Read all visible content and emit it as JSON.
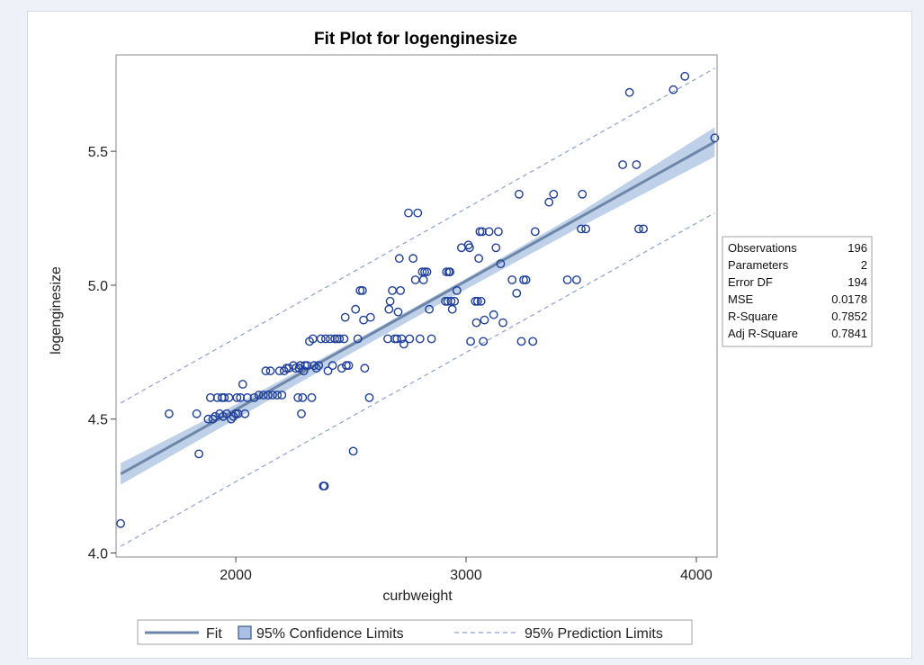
{
  "chart_data": {
    "type": "scatter",
    "title": "Fit Plot for logenginesize",
    "xlabel": "curbweight",
    "ylabel": "logenginesize",
    "xlim": [
      1480,
      4090
    ],
    "ylim": [
      3.985,
      5.86
    ],
    "xticks": [
      2000,
      3000,
      4000
    ],
    "yticks": [
      4.0,
      4.5,
      5.0,
      5.5
    ],
    "xtick_labels": [
      "2000",
      "3000",
      "4000"
    ],
    "ytick_labels": [
      "4.0",
      "4.5",
      "5.0",
      "5.5"
    ],
    "grid": false,
    "colors": {
      "points": "#1f3f9a",
      "fit": "#6e86a8",
      "confidence": "#a9c0e2",
      "prediction": "#8e9ed0"
    },
    "fit": {
      "x": [
        1500,
        4080
      ],
      "y": [
        4.295,
        5.535
      ]
    },
    "confidence_limits": {
      "x": [
        1500,
        2000,
        2500,
        3000,
        3500,
        4080
      ],
      "lower": [
        4.255,
        4.5,
        4.745,
        4.985,
        5.22,
        5.48
      ],
      "upper": [
        4.335,
        4.555,
        4.785,
        5.025,
        5.275,
        5.59
      ]
    },
    "prediction_limits": {
      "x": [
        1500,
        4080
      ],
      "lower": [
        4.025,
        5.27
      ],
      "upper": [
        4.56,
        5.81
      ]
    },
    "points": [
      [
        1500,
        4.11
      ],
      [
        1710,
        4.52
      ],
      [
        1830,
        4.52
      ],
      [
        1840,
        4.37
      ],
      [
        1880,
        4.5
      ],
      [
        1890,
        4.58
      ],
      [
        1900,
        4.5
      ],
      [
        1910,
        4.51
      ],
      [
        1920,
        4.58
      ],
      [
        1930,
        4.52
      ],
      [
        1940,
        4.58
      ],
      [
        1945,
        4.51
      ],
      [
        1950,
        4.58
      ],
      [
        1960,
        4.52
      ],
      [
        1970,
        4.58
      ],
      [
        1980,
        4.5
      ],
      [
        1990,
        4.51
      ],
      [
        2000,
        4.52
      ],
      [
        2005,
        4.58
      ],
      [
        2010,
        4.52
      ],
      [
        2020,
        4.58
      ],
      [
        2030,
        4.63
      ],
      [
        2040,
        4.52
      ],
      [
        2050,
        4.58
      ],
      [
        2080,
        4.58
      ],
      [
        2100,
        4.59
      ],
      [
        2120,
        4.59
      ],
      [
        2130,
        4.68
      ],
      [
        2140,
        4.59
      ],
      [
        2150,
        4.68
      ],
      [
        2160,
        4.59
      ],
      [
        2180,
        4.59
      ],
      [
        2190,
        4.68
      ],
      [
        2200,
        4.59
      ],
      [
        2210,
        4.68
      ],
      [
        2220,
        4.69
      ],
      [
        2230,
        4.69
      ],
      [
        2250,
        4.7
      ],
      [
        2260,
        4.69
      ],
      [
        2270,
        4.58
      ],
      [
        2275,
        4.69
      ],
      [
        2280,
        4.7
      ],
      [
        2285,
        4.52
      ],
      [
        2290,
        4.58
      ],
      [
        2295,
        4.68
      ],
      [
        2300,
        4.7
      ],
      [
        2310,
        4.7
      ],
      [
        2320,
        4.79
      ],
      [
        2330,
        4.58
      ],
      [
        2335,
        4.8
      ],
      [
        2340,
        4.7
      ],
      [
        2350,
        4.69
      ],
      [
        2360,
        4.7
      ],
      [
        2370,
        4.8
      ],
      [
        2380,
        4.25
      ],
      [
        2385,
        4.25
      ],
      [
        2390,
        4.8
      ],
      [
        2400,
        4.68
      ],
      [
        2410,
        4.8
      ],
      [
        2420,
        4.7
      ],
      [
        2430,
        4.8
      ],
      [
        2440,
        4.8
      ],
      [
        2450,
        4.8
      ],
      [
        2460,
        4.69
      ],
      [
        2470,
        4.8
      ],
      [
        2475,
        4.88
      ],
      [
        2480,
        4.7
      ],
      [
        2490,
        4.7
      ],
      [
        2510,
        4.38
      ],
      [
        2520,
        4.91
      ],
      [
        2530,
        4.8
      ],
      [
        2540,
        4.98
      ],
      [
        2550,
        4.98
      ],
      [
        2555,
        4.87
      ],
      [
        2560,
        4.69
      ],
      [
        2580,
        4.58
      ],
      [
        2585,
        4.88
      ],
      [
        2660,
        4.8
      ],
      [
        2665,
        4.91
      ],
      [
        2670,
        4.94
      ],
      [
        2680,
        4.98
      ],
      [
        2690,
        4.8
      ],
      [
        2700,
        4.8
      ],
      [
        2705,
        4.9
      ],
      [
        2710,
        5.1
      ],
      [
        2715,
        4.98
      ],
      [
        2720,
        4.8
      ],
      [
        2730,
        4.78
      ],
      [
        2750,
        5.27
      ],
      [
        2755,
        4.8
      ],
      [
        2770,
        5.1
      ],
      [
        2780,
        5.02
      ],
      [
        2790,
        5.27
      ],
      [
        2800,
        4.8
      ],
      [
        2810,
        5.05
      ],
      [
        2815,
        5.02
      ],
      [
        2820,
        5.05
      ],
      [
        2830,
        5.05
      ],
      [
        2840,
        4.91
      ],
      [
        2850,
        4.8
      ],
      [
        2910,
        4.94
      ],
      [
        2915,
        5.05
      ],
      [
        2920,
        4.94
      ],
      [
        2925,
        5.05
      ],
      [
        2930,
        5.05
      ],
      [
        2935,
        4.94
      ],
      [
        2940,
        4.91
      ],
      [
        2950,
        4.94
      ],
      [
        2960,
        4.98
      ],
      [
        2980,
        5.14
      ],
      [
        3010,
        5.15
      ],
      [
        3015,
        5.14
      ],
      [
        3020,
        4.79
      ],
      [
        3040,
        4.94
      ],
      [
        3045,
        4.86
      ],
      [
        3050,
        4.94
      ],
      [
        3055,
        5.1
      ],
      [
        3060,
        5.2
      ],
      [
        3065,
        4.94
      ],
      [
        3070,
        5.2
      ],
      [
        3075,
        4.79
      ],
      [
        3080,
        4.87
      ],
      [
        3100,
        5.2
      ],
      [
        3120,
        4.89
      ],
      [
        3130,
        5.14
      ],
      [
        3140,
        5.2
      ],
      [
        3150,
        5.08
      ],
      [
        3160,
        4.86
      ],
      [
        3200,
        5.02
      ],
      [
        3220,
        4.97
      ],
      [
        3230,
        5.34
      ],
      [
        3240,
        4.79
      ],
      [
        3250,
        5.02
      ],
      [
        3260,
        5.02
      ],
      [
        3290,
        4.79
      ],
      [
        3300,
        5.2
      ],
      [
        3360,
        5.31
      ],
      [
        3380,
        5.34
      ],
      [
        3440,
        5.02
      ],
      [
        3480,
        5.02
      ],
      [
        3500,
        5.21
      ],
      [
        3505,
        5.34
      ],
      [
        3520,
        5.21
      ],
      [
        3680,
        5.45
      ],
      [
        3710,
        5.72
      ],
      [
        3740,
        5.45
      ],
      [
        3750,
        5.21
      ],
      [
        3770,
        5.21
      ],
      [
        3900,
        5.73
      ],
      [
        3950,
        5.78
      ],
      [
        4080,
        5.55
      ]
    ]
  },
  "stats": {
    "rows": [
      {
        "label": "Observations",
        "value": "196"
      },
      {
        "label": "Parameters",
        "value": "2"
      },
      {
        "label": "Error DF",
        "value": "194"
      },
      {
        "label": "MSE",
        "value": "0.0178"
      },
      {
        "label": "R-Square",
        "value": "0.7852"
      },
      {
        "label": "Adj R-Square",
        "value": "0.7841"
      }
    ]
  },
  "legend": {
    "fit_label": "Fit",
    "confidence_label": "95% Confidence Limits",
    "prediction_label": "95% Prediction Limits"
  }
}
